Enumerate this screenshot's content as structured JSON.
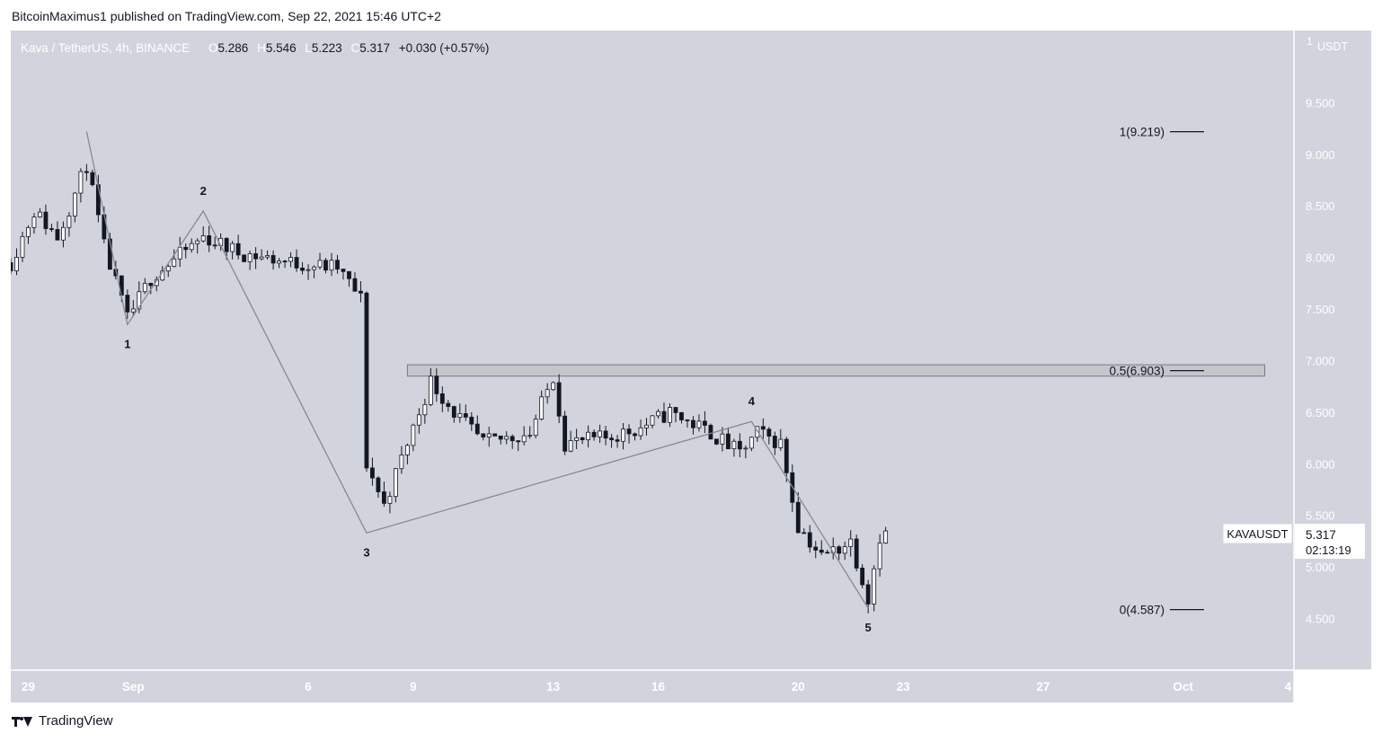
{
  "publish_line": "BitcoinMaximus1 published on TradingView.com, Sep 22, 2021 15:46 UTC+2",
  "footer": {
    "brand": "TradingView",
    "logo_icon": "tradingview-logo-icon"
  },
  "colors": {
    "background": "#d1d4dc",
    "candle_up": "#ffffff",
    "candle_down": "#131722",
    "wick": "#131722",
    "wave_line": "#868993",
    "fib_line": "#131722"
  },
  "legend": {
    "symbol": "Kava / TetherUS, 4h, BINANCE",
    "o_label": "O",
    "o": "5.286",
    "h_label": "H",
    "h": "5.546",
    "l_label": "L",
    "l": "5.223",
    "c_label": "C",
    "c": "5.317",
    "change": "+0.030 (+0.57%)"
  },
  "price_axis": {
    "unit_mark": "1",
    "currency": "USDT"
  },
  "last_price": {
    "symbol": "KAVAUSDT",
    "price": "5.317",
    "countdown": "02:13:19"
  },
  "chart_data": {
    "type": "candlestick",
    "title": "",
    "timeframe": "4h",
    "ylim": [
      4.0,
      10.2
    ],
    "y_ticks": [
      4.5,
      5.0,
      5.5,
      6.0,
      6.5,
      7.0,
      7.5,
      8.0,
      8.5,
      9.0,
      9.5
    ],
    "x_ticks": [
      {
        "date": "2021-08-29",
        "label": "29"
      },
      {
        "date": "2021-09-01",
        "label": "Sep"
      },
      {
        "date": "2021-09-06",
        "label": "6"
      },
      {
        "date": "2021-09-09",
        "label": "9"
      },
      {
        "date": "2021-09-13",
        "label": "13"
      },
      {
        "date": "2021-09-16",
        "label": "16"
      },
      {
        "date": "2021-09-20",
        "label": "20"
      },
      {
        "date": "2021-09-23",
        "label": "23"
      },
      {
        "date": "2021-09-27",
        "label": "27"
      },
      {
        "date": "2021-10-01",
        "label": "Oct"
      },
      {
        "date": "2021-10-04",
        "label": "4"
      }
    ],
    "x_start": "2021-08-28 12:00",
    "x_end": "2021-10-04 04:00",
    "wave_points": [
      {
        "t": "2021-08-30 16:00",
        "price": 9.22,
        "label": ""
      },
      {
        "t": "2021-08-31 20:00",
        "price": 7.35,
        "label": "1"
      },
      {
        "t": "2021-09-03 00:00",
        "price": 8.45,
        "label": "2"
      },
      {
        "t": "2021-09-07 16:00",
        "price": 5.33,
        "label": "3"
      },
      {
        "t": "2021-09-18 16:00",
        "price": 6.41,
        "label": "4"
      },
      {
        "t": "2021-09-22 00:00",
        "price": 4.6,
        "label": "5"
      }
    ],
    "fib_levels": [
      {
        "ratio": "1",
        "price": 9.219,
        "label": "1(9.219)"
      },
      {
        "ratio": "0.5",
        "price": 6.903,
        "label": "0.5(6.903)"
      },
      {
        "ratio": "0",
        "price": 4.587,
        "label": "0(4.587)"
      }
    ],
    "resistance_zone": {
      "t_start": "2021-09-08 20:00",
      "t_end": "2021-10-03 08:00",
      "low": 6.85,
      "high": 6.96
    },
    "candle_anchors": [
      {
        "t": "2021-08-28 12:00",
        "price": 7.95
      },
      {
        "t": "2021-08-29 04:00",
        "price": 8.45
      },
      {
        "t": "2021-08-29 20:00",
        "price": 8.2
      },
      {
        "t": "2021-08-30 16:00",
        "price": 8.9
      },
      {
        "t": "2021-08-31 04:00",
        "price": 8.1
      },
      {
        "t": "2021-08-31 20:00",
        "price": 7.4
      },
      {
        "t": "2021-09-01 12:00",
        "price": 7.8
      },
      {
        "t": "2021-09-03 00:00",
        "price": 8.2
      },
      {
        "t": "2021-09-04 00:00",
        "price": 8.05
      },
      {
        "t": "2021-09-05 12:00",
        "price": 7.95
      },
      {
        "t": "2021-09-06 20:00",
        "price": 7.9
      },
      {
        "t": "2021-09-07 12:00",
        "price": 7.6
      },
      {
        "t": "2021-09-07 16:00",
        "price": 6.0
      },
      {
        "t": "2021-09-08 04:00",
        "price": 5.6
      },
      {
        "t": "2021-09-08 20:00",
        "price": 6.2
      },
      {
        "t": "2021-09-09 12:00",
        "price": 6.8
      },
      {
        "t": "2021-09-10 04:00",
        "price": 6.5
      },
      {
        "t": "2021-09-11 00:00",
        "price": 6.2
      },
      {
        "t": "2021-09-12 08:00",
        "price": 6.3
      },
      {
        "t": "2021-09-13 00:00",
        "price": 6.85
      },
      {
        "t": "2021-09-13 08:00",
        "price": 6.2
      },
      {
        "t": "2021-09-14 12:00",
        "price": 6.25
      },
      {
        "t": "2021-09-15 12:00",
        "price": 6.35
      },
      {
        "t": "2021-09-16 08:00",
        "price": 6.5
      },
      {
        "t": "2021-09-17 12:00",
        "price": 6.3
      },
      {
        "t": "2021-09-18 08:00",
        "price": 6.1
      },
      {
        "t": "2021-09-18 20:00",
        "price": 6.3
      },
      {
        "t": "2021-09-19 12:00",
        "price": 6.2
      },
      {
        "t": "2021-09-20 00:00",
        "price": 5.4
      },
      {
        "t": "2021-09-20 16:00",
        "price": 5.1
      },
      {
        "t": "2021-09-21 12:00",
        "price": 5.25
      },
      {
        "t": "2021-09-22 00:00",
        "price": 4.7
      },
      {
        "t": "2021-09-22 08:00",
        "price": 5.3
      },
      {
        "t": "2021-09-22 12:00",
        "price": 5.32
      }
    ]
  }
}
